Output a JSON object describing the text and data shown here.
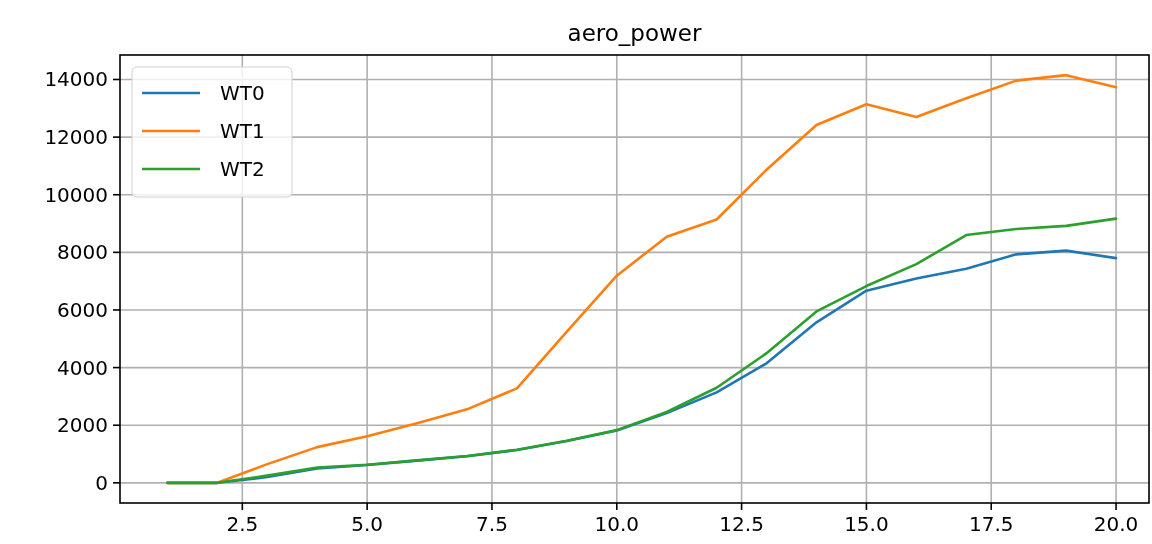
{
  "chart_data": {
    "type": "line",
    "title": "aero_power",
    "x": [
      1,
      2,
      3,
      4,
      5,
      6,
      7,
      8,
      9,
      10,
      11,
      12,
      13,
      14,
      15,
      16,
      17,
      18,
      19,
      20
    ],
    "series": [
      {
        "name": "WT0",
        "color": "#1f77b4",
        "values": [
          0,
          0,
          200,
          500,
          620,
          770,
          920,
          1140,
          1450,
          1820,
          2420,
          3140,
          4150,
          5570,
          6670,
          7090,
          7430,
          7930,
          8060,
          7800
        ]
      },
      {
        "name": "WT1",
        "color": "#ff7f0e",
        "values": [
          0,
          0,
          650,
          1240,
          1620,
          2070,
          2550,
          3280,
          5250,
          7190,
          8540,
          9140,
          10870,
          12420,
          13140,
          12700,
          13350,
          13960,
          14150,
          13730
        ]
      },
      {
        "name": "WT2",
        "color": "#2ca02c",
        "values": [
          0,
          0,
          250,
          530,
          630,
          780,
          930,
          1150,
          1460,
          1830,
          2460,
          3300,
          4500,
          5950,
          6830,
          7590,
          8600,
          8810,
          8920,
          9170
        ]
      }
    ],
    "xlim": [
      0.05,
      20.66
    ],
    "ylim": [
      -700,
      14850
    ],
    "xticks": [
      {
        "value": 2.5,
        "label": "2.5"
      },
      {
        "value": 5,
        "label": "5.0"
      },
      {
        "value": 7.5,
        "label": "7.5"
      },
      {
        "value": 10,
        "label": "10.0"
      },
      {
        "value": 12.5,
        "label": "12.5"
      },
      {
        "value": 15,
        "label": "15.0"
      },
      {
        "value": 17.5,
        "label": "17.5"
      },
      {
        "value": 20,
        "label": "20.0"
      }
    ],
    "yticks": [
      0,
      2000,
      4000,
      6000,
      8000,
      10000,
      12000,
      14000
    ],
    "grid": true,
    "legend": "top left",
    "marker": "none",
    "line_style": "solid"
  }
}
